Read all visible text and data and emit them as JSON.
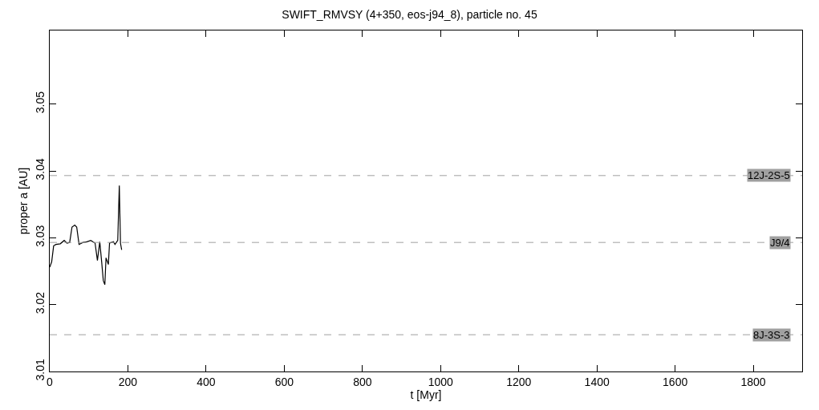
{
  "chart_data": {
    "type": "line",
    "title": "SWIFT_RMVSY (4+350, eos-j94_8), particle no. 45",
    "xlabel": "t [Myr]",
    "ylabel": "proper a [AU]",
    "x": [
      0,
      5,
      10,
      16,
      27,
      37,
      44,
      51,
      57,
      64,
      69,
      75,
      85,
      95,
      105,
      116,
      122,
      128,
      133,
      137,
      141,
      144,
      150,
      153,
      163,
      167,
      174,
      178,
      181,
      184
    ],
    "series": [
      {
        "color": "#000000",
        "values": [
          3.0256,
          3.0264,
          3.0288,
          3.029,
          3.0291,
          3.0296,
          3.0292,
          3.0293,
          3.0316,
          3.0319,
          3.0316,
          3.029,
          3.0293,
          3.0294,
          3.0296,
          3.0292,
          3.0266,
          3.0294,
          3.0263,
          3.0236,
          3.023,
          3.027,
          3.026,
          3.0292,
          3.0294,
          3.029,
          3.0296,
          3.0378,
          3.0292,
          3.0282
        ]
      }
    ],
    "xlim": [
      0,
      1925
    ],
    "xticks": [
      0,
      200,
      400,
      600,
      800,
      1000,
      1200,
      1400,
      1600,
      1800
    ],
    "ylim": [
      3.01,
      3.061
    ],
    "yticks": [
      3.01,
      3.02,
      3.03,
      3.04,
      3.05
    ],
    "ref_lines": [
      {
        "axis": "y",
        "value": 3.0393,
        "label": "12J-2S-5",
        "color": "#a0a0a0",
        "line_style": "dashed"
      },
      {
        "axis": "y",
        "value": 3.0293,
        "label": "J9/4",
        "color": "#a0a0a0",
        "line_style": "dashed"
      },
      {
        "axis": "y",
        "value": 3.0155,
        "label": "8J-3S-3",
        "color": "#a0a0a0",
        "line_style": "dashed"
      }
    ],
    "marker": "none",
    "line_style": "solid"
  }
}
